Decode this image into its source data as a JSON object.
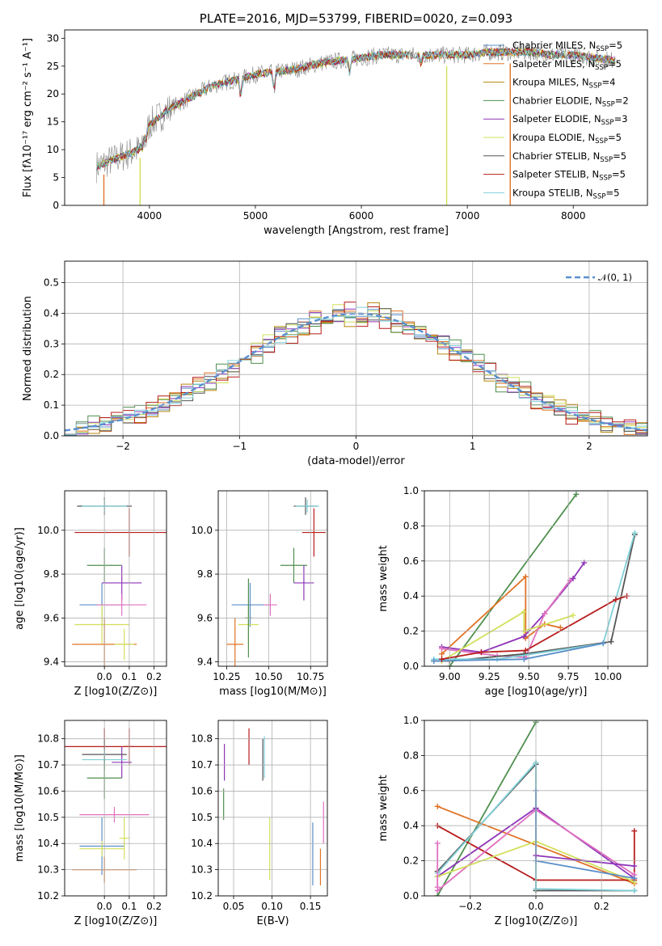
{
  "colors": {
    "Chabrier MILES": "#5a8fc8",
    "Salpeter MILES": "#e07326",
    "Kroupa MILES": "#b8860b",
    "Chabrier ELODIE": "#4f8f4f",
    "Salpeter ELODIE": "#8e35b8",
    "Kroupa ELODIE": "#d2e05a",
    "Chabrier STELIB": "#555555",
    "Salpeter STELIB": "#b81c1c",
    "Kroupa STELIB": "#7fd0d8",
    "pink": "#e070c0",
    "grid": "#b0b0b0"
  },
  "chart_data": [
    {
      "id": "spectrum",
      "type": "line",
      "title": "PLATE=2016, MJD=53799, FIBERID=0020, z=0.093",
      "xlabel": "wavelength [Angstrom, rest frame]",
      "ylabel": "Flux [fλ10⁻¹⁷ erg cm⁻² s⁻¹ A⁻¹]",
      "xlim": [
        3200,
        8700
      ],
      "ylim": [
        0,
        31.5
      ],
      "xticks": [
        "4000",
        "5000",
        "6000",
        "7000",
        "8000"
      ],
      "yticks": [
        "0",
        "5",
        "10",
        "15",
        "20",
        "25",
        "30"
      ],
      "legend_position": "top-right",
      "series": [
        {
          "name": "Chabrier MILES, NSSP=5",
          "label": "Chabrier MILES, N",
          "sub": "SSP",
          "tail": "=5",
          "color": "#5a8fc8"
        },
        {
          "name": "Salpeter MILES, NSSP=5",
          "label": "Salpeter MILES, N",
          "sub": "SSP",
          "tail": "=5",
          "color": "#e07326"
        },
        {
          "name": "Kroupa MILES, NSSP=4",
          "label": "Kroupa MILES, N",
          "sub": "SSP",
          "tail": "=4",
          "color": "#b8860b"
        },
        {
          "name": "Chabrier ELODIE, NSSP=2",
          "label": "Chabrier ELODIE, N",
          "sub": "SSP",
          "tail": "=2",
          "color": "#4f8f4f"
        },
        {
          "name": "Salpeter ELODIE, NSSP=3",
          "label": "Salpeter ELODIE, N",
          "sub": "SSP",
          "tail": "=3",
          "color": "#8e35b8"
        },
        {
          "name": "Kroupa ELODIE, NSSP=5",
          "label": "Kroupa ELODIE, N",
          "sub": "SSP",
          "tail": "=5",
          "color": "#d2e05a"
        },
        {
          "name": "Chabrier STELIB, NSSP=5",
          "label": "Chabrier STELIB, N",
          "sub": "SSP",
          "tail": "=5",
          "color": "#555555"
        },
        {
          "name": "Salpeter STELIB, NSSP=5",
          "label": "Salpeter STELIB, N",
          "sub": "SSP",
          "tail": "=5",
          "color": "#b81c1c"
        },
        {
          "name": "Kroupa STELIB, NSSP=5",
          "label": "Kroupa STELIB, N",
          "sub": "SSP",
          "tail": "=5",
          "color": "#7fd0d8"
        }
      ],
      "continuum": [
        [
          3500,
          7.0
        ],
        [
          3700,
          8.5
        ],
        [
          3900,
          10.0
        ],
        [
          4000,
          14.5
        ],
        [
          4200,
          17.5
        ],
        [
          4400,
          19.5
        ],
        [
          4600,
          21.5
        ],
        [
          4800,
          22.5
        ],
        [
          5000,
          23.5
        ],
        [
          5200,
          24.0
        ],
        [
          5400,
          24.5
        ],
        [
          5600,
          25.5
        ],
        [
          5800,
          26.0
        ],
        [
          6000,
          26.5
        ],
        [
          6200,
          27.0
        ],
        [
          6400,
          27.0
        ],
        [
          6600,
          27.0
        ],
        [
          6800,
          27.0
        ],
        [
          7000,
          27.0
        ],
        [
          7200,
          27.5
        ],
        [
          7400,
          27.5
        ],
        [
          7600,
          27.5
        ],
        [
          7800,
          27.0
        ],
        [
          8000,
          27.0
        ],
        [
          8200,
          26.5
        ],
        [
          8400,
          26.0
        ]
      ],
      "dips": [
        [
          3934,
          1.5
        ],
        [
          3968,
          1.5
        ],
        [
          4861,
          4.0
        ],
        [
          5175,
          4.0
        ],
        [
          5890,
          3.0
        ],
        [
          6563,
          2.0
        ]
      ]
    },
    {
      "id": "residuals",
      "type": "bar",
      "xlabel": "(data-model)/error",
      "ylabel": "Normed distribution",
      "xlim": [
        -2.5,
        2.5
      ],
      "ylim": [
        0,
        0.57
      ],
      "xticks": [
        "−2",
        "−1",
        "0",
        "1",
        "2"
      ],
      "yticks": [
        "0.0",
        "0.1",
        "0.2",
        "0.3",
        "0.4",
        "0.5"
      ],
      "legend": "𝒩(0, 1)",
      "legend_position": "top-right",
      "bin_width": 0.1,
      "reference_curve": "normal pdf mean 0 sigma 1",
      "hist_jitter": [
        0.018,
        0.025,
        0.03,
        0.035,
        0.02,
        0.028,
        0.022,
        0.032,
        0.015
      ]
    },
    {
      "id": "age-Z",
      "type": "scatter",
      "xlabel": "Z [log10(Z/Z⊙)]",
      "ylabel": "age  [log10(age/yr)]",
      "xlim": [
        -0.16,
        0.25
      ],
      "ylim": [
        9.38,
        10.18
      ],
      "xticks": [
        "0.0",
        "0.1",
        "0.2"
      ],
      "yticks": [
        "9.4",
        "9.6",
        "9.8",
        "10.0"
      ],
      "points": [
        {
          "x": 0.0,
          "y": 10.11,
          "dx": 0.11,
          "dy": 0.04,
          "color": "#555555"
        },
        {
          "x": 0.0,
          "y": 10.11,
          "dx": 0.09,
          "dy": 0.03,
          "color": "#7fd0d8"
        },
        {
          "x": 0.1,
          "y": 9.99,
          "dx": 0.22,
          "dy": 0.11,
          "color": "#b81c1c"
        },
        {
          "x": 0.0,
          "y": 9.84,
          "dx": 0.07,
          "dy": 0.08,
          "color": "#4f8f4f"
        },
        {
          "x": 0.07,
          "y": 9.76,
          "dx": 0.08,
          "dy": 0.08,
          "color": "#8e35b8"
        },
        {
          "x": -0.01,
          "y": 9.66,
          "dx": 0.09,
          "dy": 0.1,
          "color": "#5a8fc8"
        },
        {
          "x": 0.07,
          "y": 9.66,
          "dx": 0.1,
          "dy": 0.05,
          "color": "#e070c0"
        },
        {
          "x": -0.01,
          "y": 9.57,
          "dx": 0.11,
          "dy": 0.09,
          "color": "#d2e05a"
        },
        {
          "x": 0.0,
          "y": 9.48,
          "dx": 0.13,
          "dy": 0.12,
          "color": "#e07326"
        },
        {
          "x": 0.08,
          "y": 9.48,
          "dx": 0.04,
          "dy": 0.07,
          "color": "#d2e05a"
        }
      ]
    },
    {
      "id": "age-mass",
      "type": "scatter",
      "xlabel": "mass [log10(M/M⊙)]",
      "ylabel": "",
      "xlim": [
        10.2,
        10.85
      ],
      "ylim": [
        9.38,
        10.18
      ],
      "xticks": [
        "10.25",
        "10.50",
        "10.75"
      ],
      "yticks": [
        "9.4",
        "9.6",
        "9.8",
        "10.0"
      ],
      "points": [
        {
          "x": 10.72,
          "y": 10.11,
          "dx": 0.07,
          "dy": 0.04,
          "color": "#555555"
        },
        {
          "x": 10.73,
          "y": 10.11,
          "dx": 0.07,
          "dy": 0.03,
          "color": "#7fd0d8"
        },
        {
          "x": 10.77,
          "y": 9.99,
          "dx": 0.07,
          "dy": 0.11,
          "color": "#b81c1c"
        },
        {
          "x": 10.65,
          "y": 9.84,
          "dx": 0.08,
          "dy": 0.08,
          "color": "#4f8f4f"
        },
        {
          "x": 10.71,
          "y": 9.76,
          "dx": 0.06,
          "dy": 0.08,
          "color": "#8e35b8"
        },
        {
          "x": 10.39,
          "y": 9.66,
          "dx": 0.11,
          "dy": 0.1,
          "color": "#5a8fc8"
        },
        {
          "x": 10.51,
          "y": 9.66,
          "dx": 0.04,
          "dy": 0.05,
          "color": "#e070c0"
        },
        {
          "x": 10.38,
          "y": 9.57,
          "dx": 0.06,
          "dy": 0.09,
          "color": "#d2e05a"
        },
        {
          "x": 10.3,
          "y": 9.48,
          "dx": 0.05,
          "dy": 0.12,
          "color": "#e07326"
        },
        {
          "x": 10.38,
          "y": 9.6,
          "dx": 0.02,
          "dy": 0.18,
          "color": "#4f8f4f"
        }
      ]
    },
    {
      "id": "weight-age",
      "type": "line",
      "xlabel": "age  [log10(age/yr)]",
      "ylabel": "mass weight",
      "xlim": [
        8.84,
        10.25
      ],
      "ylim": [
        0,
        1.0
      ],
      "xticks": [
        "9.00",
        "9.25",
        "9.50",
        "9.75",
        "10.00"
      ],
      "yticks": [
        "0.0",
        "0.2",
        "0.4",
        "0.6",
        "0.8",
        "1.0"
      ],
      "series": [
        {
          "color": "#4f8f4f",
          "pts": [
            [
              9.0,
              0.0
            ],
            [
              9.8,
              0.98
            ]
          ]
        },
        {
          "color": "#e07326",
          "pts": [
            [
              8.95,
              0.07
            ],
            [
              9.48,
              0.51
            ],
            [
              9.48,
              0.16
            ],
            [
              9.6,
              0.24
            ],
            [
              9.7,
              0.22
            ]
          ]
        },
        {
          "color": "#8e35b8",
          "pts": [
            [
              8.95,
              0.11
            ],
            [
              9.2,
              0.08
            ],
            [
              9.47,
              0.17
            ],
            [
              9.6,
              0.3
            ],
            [
              9.78,
              0.5
            ],
            [
              9.85,
              0.59
            ]
          ]
        },
        {
          "color": "#e070c0",
          "pts": [
            [
              8.95,
              0.1
            ],
            [
              9.3,
              0.06
            ],
            [
              9.48,
              0.05
            ],
            [
              9.6,
              0.3
            ],
            [
              9.76,
              0.49
            ]
          ]
        },
        {
          "color": "#d2e05a",
          "pts": [
            [
              8.95,
              0.03
            ],
            [
              9.47,
              0.31
            ],
            [
              9.47,
              0.2
            ],
            [
              9.78,
              0.29
            ]
          ]
        },
        {
          "color": "#555555",
          "pts": [
            [
              8.9,
              0.03
            ],
            [
              9.0,
              0.03
            ],
            [
              9.47,
              0.07
            ],
            [
              10.02,
              0.14
            ],
            [
              10.17,
              0.75
            ]
          ]
        },
        {
          "color": "#7fd0d8",
          "pts": [
            [
              8.9,
              0.04
            ],
            [
              9.3,
              0.04
            ],
            [
              9.97,
              0.13
            ],
            [
              10.17,
              0.76
            ]
          ]
        },
        {
          "color": "#5a8fc8",
          "pts": [
            [
              8.9,
              0.03
            ],
            [
              9.47,
              0.04
            ],
            [
              9.97,
              0.13
            ]
          ]
        },
        {
          "color": "#b81c1c",
          "pts": [
            [
              8.95,
              0.04
            ],
            [
              9.2,
              0.08
            ],
            [
              9.48,
              0.09
            ],
            [
              10.05,
              0.38
            ],
            [
              10.12,
              0.4
            ]
          ]
        }
      ]
    },
    {
      "id": "mass-Z",
      "type": "scatter",
      "xlabel": "Z [log10(Z/Z⊙)]",
      "ylabel": "mass [log10(M/M⊙)]",
      "xlim": [
        -0.16,
        0.25
      ],
      "ylim": [
        10.2,
        10.87
      ],
      "xticks": [
        "0.0",
        "0.1",
        "0.2"
      ],
      "yticks": [
        "10.2",
        "10.3",
        "10.4",
        "10.5",
        "10.6",
        "10.7",
        "10.8"
      ],
      "points": [
        {
          "x": 0.0,
          "y": 10.77,
          "dx": 0.25,
          "dy": 0.07,
          "color": "#b81c1c"
        },
        {
          "x": 0.1,
          "y": 10.77,
          "dx": 0.02,
          "dy": 0.07,
          "color": "#b81c1c"
        },
        {
          "x": 0.07,
          "y": 10.71,
          "dx": 0.04,
          "dy": 0.06,
          "color": "#8e35b8"
        },
        {
          "x": 0.0,
          "y": 10.74,
          "dx": 0.09,
          "dy": 0.06,
          "color": "#555555"
        },
        {
          "x": 0.0,
          "y": 10.72,
          "dx": 0.09,
          "dy": 0.04,
          "color": "#7fd0d8"
        },
        {
          "x": 0.0,
          "y": 10.65,
          "dx": 0.07,
          "dy": 0.08,
          "color": "#4f8f4f"
        },
        {
          "x": 0.04,
          "y": 10.51,
          "dx": 0.14,
          "dy": 0.03,
          "color": "#e070c0"
        },
        {
          "x": -0.01,
          "y": 10.39,
          "dx": 0.09,
          "dy": 0.11,
          "color": "#5a8fc8"
        },
        {
          "x": -0.01,
          "y": 10.38,
          "dx": 0.09,
          "dy": 0.03,
          "color": "#d2e05a"
        },
        {
          "x": 0.08,
          "y": 10.42,
          "dx": 0.02,
          "dy": 0.08,
          "color": "#d2e05a"
        },
        {
          "x": 0.0,
          "y": 10.3,
          "dx": 0.13,
          "dy": 0.05,
          "color": "#e07326"
        }
      ]
    },
    {
      "id": "mass-EBV",
      "type": "scatter",
      "xlabel": "E(B-V)",
      "ylabel": "",
      "xlim": [
        0.03,
        0.172
      ],
      "ylim": [
        10.2,
        10.87
      ],
      "xticks": [
        "0.05",
        "0.10",
        "0.15"
      ],
      "yticks": [
        "10.2",
        "10.3",
        "10.4",
        "10.5",
        "10.6",
        "10.7",
        "10.8"
      ],
      "points": [
        {
          "x": 0.038,
          "y": 10.71,
          "dx": 0,
          "dy": 0.07,
          "color": "#8e35b8"
        },
        {
          "x": 0.037,
          "y": 10.55,
          "dx": 0,
          "dy": 0.06,
          "color": "#4f8f4f"
        },
        {
          "x": 0.07,
          "y": 10.77,
          "dx": 0,
          "dy": 0.07,
          "color": "#b81c1c"
        },
        {
          "x": 0.088,
          "y": 10.72,
          "dx": 0,
          "dy": 0.08,
          "color": "#555555"
        },
        {
          "x": 0.09,
          "y": 10.73,
          "dx": 0,
          "dy": 0.08,
          "color": "#7fd0d8"
        },
        {
          "x": 0.097,
          "y": 10.38,
          "dx": 0,
          "dy": 0.12,
          "color": "#d2e05a"
        },
        {
          "x": 0.153,
          "y": 10.36,
          "dx": 0,
          "dy": 0.12,
          "color": "#5a8fc8"
        },
        {
          "x": 0.163,
          "y": 10.31,
          "dx": 0,
          "dy": 0.07,
          "color": "#e07326"
        },
        {
          "x": 0.167,
          "y": 10.48,
          "dx": 0,
          "dy": 0.08,
          "color": "#e070c0"
        }
      ]
    },
    {
      "id": "weight-Z",
      "type": "line",
      "xlabel": "Z [log10(Z/Z⊙)]",
      "ylabel": "mass weight",
      "xlim": [
        -0.34,
        0.34
      ],
      "ylim": [
        0,
        1.0
      ],
      "xticks": [
        "−0.2",
        "0.0",
        "0.2"
      ],
      "yticks": [
        "0.0",
        "0.2",
        "0.4",
        "0.6",
        "0.8",
        "1.0"
      ],
      "series": [
        {
          "color": "#4f8f4f",
          "pts": [
            [
              -0.3,
              0.0
            ],
            [
              0.0,
              0.99
            ]
          ]
        },
        {
          "color": "#e07326",
          "pts": [
            [
              -0.3,
              0.51
            ],
            [
              0.3,
              0.07
            ]
          ]
        },
        {
          "color": "#b81c1c",
          "pts": [
            [
              -0.3,
              0.4
            ],
            [
              0.0,
              0.09
            ],
            [
              0.3,
              0.09
            ],
            [
              0.3,
              0.37
            ]
          ]
        },
        {
          "color": "#555555",
          "pts": [
            [
              -0.3,
              0.14
            ],
            [
              0.0,
              0.75
            ],
            [
              0.0,
              0.03
            ],
            [
              0.3,
              0.03
            ]
          ]
        },
        {
          "color": "#7fd0d8",
          "pts": [
            [
              -0.3,
              0.13
            ],
            [
              0.0,
              0.76
            ],
            [
              0.0,
              0.04
            ],
            [
              0.3,
              0.03
            ]
          ]
        },
        {
          "color": "#8e35b8",
          "pts": [
            [
              -0.3,
              0.11
            ],
            [
              0.0,
              0.5
            ],
            [
              0.3,
              0.1
            ]
          ]
        },
        {
          "color": "#e070c0",
          "pts": [
            [
              -0.3,
              0.03
            ],
            [
              0.0,
              0.49
            ],
            [
              0.3,
              0.12
            ]
          ]
        },
        {
          "color": "#d2e05a",
          "pts": [
            [
              -0.3,
              0.11
            ],
            [
              0.0,
              0.31
            ],
            [
              0.3,
              0.08
            ]
          ]
        },
        {
          "color": "#5a8fc8",
          "pts": [
            [
              0.0,
              0.6
            ],
            [
              0.0,
              0.2
            ],
            [
              0.3,
              0.1
            ]
          ]
        },
        {
          "color": "#8e35b8",
          "pts": [
            [
              0.0,
              0.23
            ],
            [
              0.3,
              0.17
            ]
          ]
        },
        {
          "color": "#e070c0",
          "pts": [
            [
              -0.3,
              0.3
            ],
            [
              -0.3,
              0.05
            ]
          ]
        }
      ]
    }
  ]
}
